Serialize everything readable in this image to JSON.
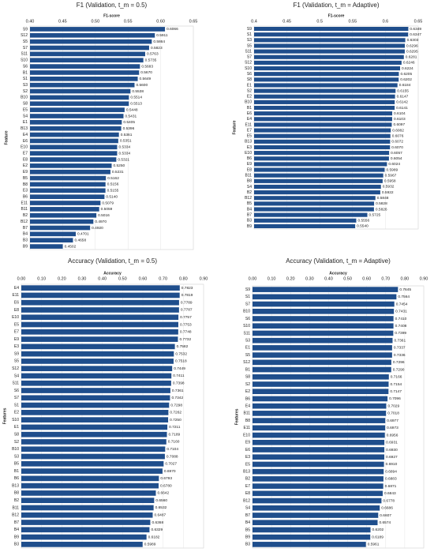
{
  "chart_data": [
    {
      "type": "bar",
      "orientation": "horizontal",
      "title": "F1  (Validation, t_m = 0.5)",
      "xlabel": "F1-score",
      "ylabel": "Feature",
      "color": "#1f4e8c",
      "grid": true,
      "xlim": [
        0.4,
        0.65
      ],
      "xticks": [
        {
          "value": 0.4,
          "label": "0.40"
        },
        0.45,
        {
          "value": 0.5,
          "label": "0.50"
        },
        0.55,
        {
          "value": 0.6,
          "label": "0.60"
        },
        0.65
      ],
      "categories": [
        "S9",
        "S12",
        "S5",
        "S7",
        "S11",
        "S10",
        "S6",
        "B1",
        "S1",
        "S3",
        "S2",
        "B10",
        "S8",
        "E5",
        "S4",
        "E1",
        "B13",
        "E4",
        "E6",
        "E10",
        "E7",
        "E8",
        "E2",
        "E9",
        "B5",
        "B8",
        "E3",
        "B6",
        "E11",
        "B11",
        "B2",
        "B12",
        "B7",
        "B4",
        "B3",
        "B9"
      ],
      "values": [
        0.6066,
        0.5911,
        0.5864,
        0.5823,
        0.5763,
        0.5735,
        0.5683,
        0.567,
        0.5649,
        0.56,
        0.5538,
        0.5514,
        0.5513,
        0.5448,
        0.5431,
        0.5405,
        0.5396,
        0.5361,
        0.5351,
        0.5334,
        0.5334,
        0.5321,
        0.525,
        0.5231,
        0.5162,
        0.5156,
        0.5155,
        0.514,
        0.5079,
        0.5059,
        0.5016,
        0.497,
        0.492,
        0.4701,
        0.4658,
        0.4502
      ],
      "value_labels": [
        "0.6066",
        "0.5911",
        "0.5864",
        "0.5823",
        "0.5763",
        "0.5735",
        "0.5683",
        "0.5670",
        "0.5649",
        "0.5600",
        "0.5538",
        "0.5514",
        "0.5513",
        "0.5448",
        "0.5431",
        "0.5405",
        "0.5396",
        "0.5361",
        "0.5351",
        "0.5334",
        "0.5334",
        "0.5321",
        "0.5250",
        "0.5231",
        "0.5162",
        "0.5156",
        "0.5155",
        "0.5140",
        "0.5079",
        "0.5059",
        "0.5016",
        "0.4970",
        "0.4920",
        "0.4701",
        "0.4658",
        "0.4502"
      ]
    },
    {
      "type": "bar",
      "orientation": "horizontal",
      "title": "F1  (Validation, t_m = Adaptive)",
      "xlabel": "F1-score",
      "ylabel": "Feature",
      "color": "#1f4e8c",
      "grid": true,
      "xlim": [
        0.4,
        0.65
      ],
      "xticks": [
        0.4,
        0.45,
        0.5,
        0.55,
        0.6,
        0.65
      ],
      "categories": [
        "S9",
        "S1",
        "S3",
        "S5",
        "S11",
        "S7",
        "S12",
        "S10",
        "S6",
        "S8",
        "E1",
        "S2",
        "E2",
        "B10",
        "B1",
        "E6",
        "E4",
        "E11",
        "E7",
        "E5",
        "B13",
        "E3",
        "E10",
        "B6",
        "E9",
        "E8",
        "B11",
        "B8",
        "S4",
        "B2",
        "B12",
        "B5",
        "B4",
        "B7",
        "B3",
        "B9"
      ],
      "values": [
        0.6349,
        0.6347,
        0.6303,
        0.6296,
        0.6295,
        0.6281,
        0.6246,
        0.6224,
        0.6205,
        0.6202,
        0.6184,
        0.6155,
        0.6147,
        0.6142,
        0.6141,
        0.6104,
        0.6103,
        0.6097,
        0.6082,
        0.6076,
        0.6072,
        0.607,
        0.6057,
        0.6054,
        0.6024,
        0.5989,
        0.5967,
        0.5958,
        0.5932,
        0.5922,
        0.5848,
        0.5828,
        0.5826,
        0.5725,
        0.5556,
        0.554
      ],
      "value_labels": [
        "0.6349",
        "0.6347",
        "0.6303",
        "0.6296",
        "0.6295",
        "0.6281",
        "0.6246",
        "0.6224",
        "0.6205",
        "0.6202",
        "0.6184",
        "0.6155",
        "0.6147",
        "0.6142",
        "0.6141",
        "0.6104",
        "0.6103",
        "0.6097",
        "0.6082",
        "0.6076",
        "0.6072",
        "0.6070",
        "0.6057",
        "0.6054",
        "0.6024",
        "0.5989",
        "0.5967",
        "0.5958",
        "0.5932",
        "0.5922",
        "0.5848",
        "0.5828",
        "0.5826",
        "0.5725",
        "0.5556",
        "0.5540"
      ]
    },
    {
      "type": "bar",
      "orientation": "horizontal",
      "title": "Accuracy (Validation, t_m = 0.5)",
      "xlabel": "Accuracy",
      "ylabel": "Features",
      "color": "#1f4e8c",
      "grid": true,
      "xlim": [
        0,
        0.9
      ],
      "xticks": [
        {
          "value": 0,
          "label": "0.00"
        },
        {
          "value": 0.1,
          "label": "0.10"
        },
        {
          "value": 0.2,
          "label": "0.20"
        },
        {
          "value": 0.3,
          "label": "0.30"
        },
        {
          "value": 0.4,
          "label": "0.40"
        },
        {
          "value": 0.5,
          "label": "0.50"
        },
        {
          "value": 0.6,
          "label": "0.60"
        },
        {
          "value": 0.7,
          "label": "0.70"
        },
        {
          "value": 0.8,
          "label": "0.80"
        },
        {
          "value": 0.9,
          "label": "0.90"
        }
      ],
      "categories": [
        "E4",
        "E11",
        "E6",
        "E8",
        "E10",
        "E5",
        "E7",
        "E9",
        "E3",
        "S9",
        "S5",
        "S12",
        "S4",
        "S11",
        "S6",
        "S7",
        "S1",
        "E2",
        "S10",
        "E1",
        "S8",
        "S2",
        "B10",
        "S3",
        "B5",
        "B1",
        "B6",
        "B13",
        "B8",
        "B2",
        "B11",
        "B12",
        "B7",
        "B4",
        "B9",
        "B3"
      ],
      "values": [
        0.7823,
        0.7819,
        0.7789,
        0.7787,
        0.7757,
        0.7753,
        0.7748,
        0.7732,
        0.7582,
        0.7532,
        0.7518,
        0.7449,
        0.7411,
        0.7398,
        0.7361,
        0.7342,
        0.7298,
        0.7262,
        0.725,
        0.7211,
        0.7189,
        0.716,
        0.7104,
        0.7088,
        0.7027,
        0.697,
        0.6793,
        0.678,
        0.6642,
        0.656,
        0.6532,
        0.6487,
        0.6368,
        0.6329,
        0.6182,
        0.5989
      ],
      "value_labels": [
        "0.7823",
        "0.7819",
        "0.7789",
        "0.7787",
        "0.7757",
        "0.7753",
        "0.7748",
        "0.7732",
        "0.7582",
        "0.7532",
        "0.7518",
        "0.7449",
        "0.7411",
        "0.7398",
        "0.7361",
        "0.7342",
        "0.7298",
        "0.7262",
        "0.7250",
        "0.7211",
        "0.7189",
        "0.7160",
        "0.7104",
        "0.7088",
        "0.7027",
        "0.6970",
        "0.6793",
        "0.6780",
        "0.6642",
        "0.6560",
        "0.6532",
        "0.6487",
        "0.6368",
        "0.6329",
        "0.6182",
        "0.5989"
      ]
    },
    {
      "type": "bar",
      "orientation": "horizontal",
      "title": "Accuracy (Validation, t_m = Adaptive)",
      "xlabel": "Accuracy",
      "ylabel": "Features",
      "color": "#1f4e8c",
      "grid": true,
      "xlim": [
        0,
        0.9
      ],
      "xticks": [
        {
          "value": 0,
          "label": "0.00"
        },
        {
          "value": 0.1,
          "label": "0.10"
        },
        {
          "value": 0.2,
          "label": "0.20"
        },
        {
          "value": 0.3,
          "label": "0.30"
        },
        {
          "value": 0.4,
          "label": "0.40"
        },
        {
          "value": 0.5,
          "label": "0.50"
        },
        {
          "value": 0.6,
          "label": "0.60"
        },
        {
          "value": 0.7,
          "label": "0.70"
        },
        {
          "value": 0.8,
          "label": "0.80"
        },
        {
          "value": 0.9,
          "label": "0.90"
        }
      ],
      "categories": [
        "S9",
        "S1",
        "S7",
        "B10",
        "S6",
        "S10",
        "S11",
        "S3",
        "E1",
        "S5",
        "S12",
        "B1",
        "S8",
        "S2",
        "E2",
        "B6",
        "E4",
        "B11",
        "B8",
        "E11",
        "E10",
        "E9",
        "E6",
        "E3",
        "E5",
        "B13",
        "B2",
        "E7",
        "E8",
        "B12",
        "S4",
        "B7",
        "B4",
        "B5",
        "B9",
        "B3"
      ],
      "values": [
        0.7645,
        0.7564,
        0.7454,
        0.7431,
        0.741,
        0.7408,
        0.7399,
        0.7361,
        0.7337,
        0.7336,
        0.7296,
        0.729,
        0.7166,
        0.7154,
        0.7147,
        0.7096,
        0.7029,
        0.7018,
        0.6977,
        0.6973,
        0.6956,
        0.6931,
        0.693,
        0.6927,
        0.691,
        0.6894,
        0.6883,
        0.6871,
        0.6843,
        0.6778,
        0.6686,
        0.6607,
        0.6574,
        0.6202,
        0.6189,
        0.5961
      ],
      "value_labels": [
        "0.7645",
        "0.7564",
        "0.7454",
        "0.7431",
        "0.7410",
        "0.7408",
        "0.7399",
        "0.7361",
        "0.7337",
        "0.7336",
        "0.7296",
        "0.7290",
        "0.7166",
        "0.7154",
        "0.7147",
        "0.7096",
        "0.7029",
        "0.7018",
        "0.6977",
        "0.6973",
        "0.6956",
        "0.6931",
        "0.6930",
        "0.6927",
        "0.6910",
        "0.6894",
        "0.6883",
        "0.6871",
        "0.6843",
        "0.6778",
        "0.6686",
        "0.6607",
        "0.6574",
        "0.6202",
        "0.6189",
        "0.5961"
      ]
    }
  ]
}
